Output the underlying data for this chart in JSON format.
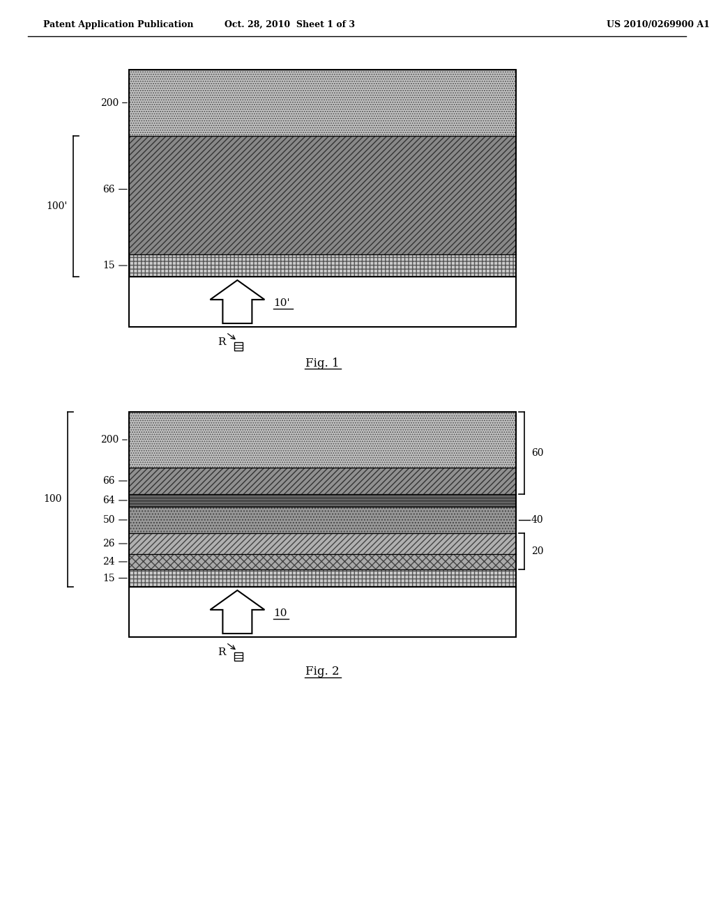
{
  "header_left": "Patent Application Publication",
  "header_center": "Oct. 28, 2010  Sheet 1 of 3",
  "header_right": "US 2010/0269900 A1",
  "fig1_caption": "Fig. 1",
  "fig2_caption": "Fig. 2",
  "background_color": "#ffffff"
}
